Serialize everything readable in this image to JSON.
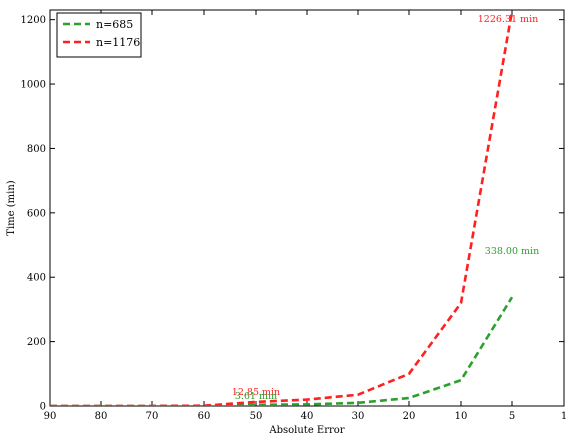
{
  "chart_data": {
    "type": "line",
    "xlabel": "Absolute Error",
    "ylabel": "Time (min)",
    "xlim": [
      90,
      1
    ],
    "ylim": [
      0,
      1230
    ],
    "x_reversed": true,
    "x_ticks": [
      90,
      80,
      70,
      60,
      50,
      40,
      30,
      20,
      10,
      5,
      1
    ],
    "y_ticks": [
      0,
      200,
      400,
      600,
      800,
      1000,
      1200
    ],
    "legend_position": "top-left",
    "series": [
      {
        "name": "n=685",
        "color": "#2ca02c",
        "x": [
          90,
          80,
          70,
          60,
          50,
          40,
          30,
          20,
          10,
          5
        ],
        "y": [
          0,
          0,
          0,
          0.4,
          3.61,
          5,
          10,
          25,
          80,
          338
        ]
      },
      {
        "name": "n=1176",
        "color": "#ff2020",
        "x": [
          90,
          80,
          70,
          60,
          50,
          40,
          30,
          20,
          10,
          5
        ],
        "y": [
          0,
          0,
          0,
          1,
          12.85,
          20,
          35,
          100,
          320,
          1226.31
        ]
      }
    ],
    "annotations": [
      {
        "text": "12.85 min",
        "series": 1,
        "x": 50,
        "y": 12.85,
        "color": "#ff2020"
      },
      {
        "text": "3.61 min",
        "series": 0,
        "x": 50,
        "y": 3.61,
        "color": "#2ca02c"
      },
      {
        "text": "1226.31 min",
        "series": 1,
        "x": 5,
        "y": 1226.31,
        "color": "#ff2020"
      },
      {
        "text": "338.00 min",
        "series": 0,
        "x": 5,
        "y": 338,
        "color": "#2ca02c"
      }
    ]
  }
}
